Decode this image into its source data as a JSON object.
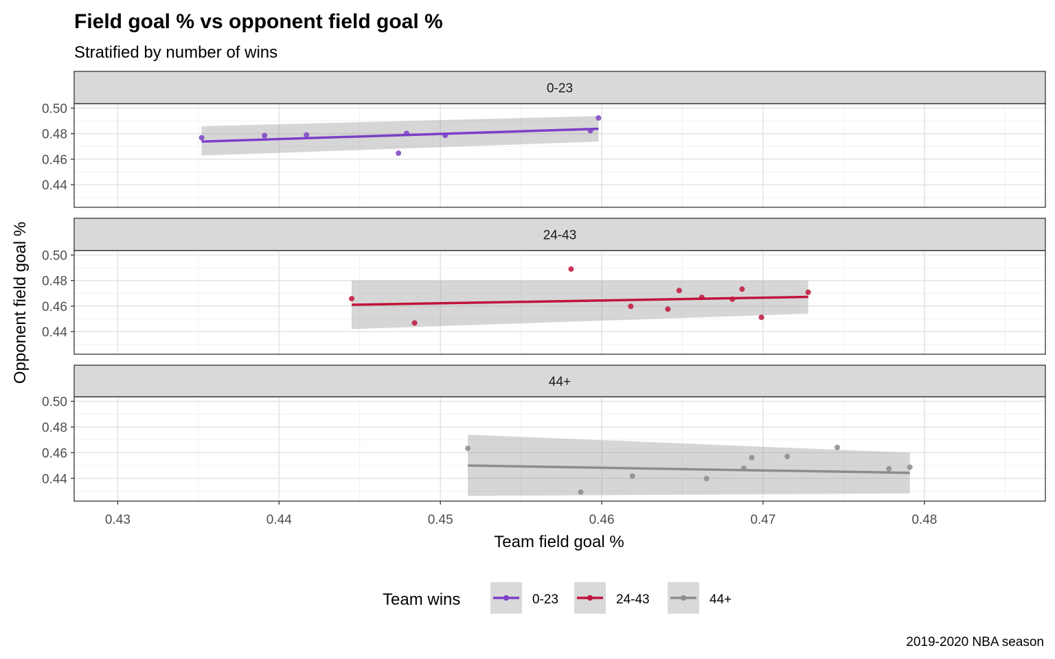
{
  "chart_data": {
    "type": "scatter",
    "title": "Field goal % vs opponent field goal %",
    "subtitle": "Stratified by number of wins",
    "xlabel": "Team field goal %",
    "ylabel": "Opponent field goal %",
    "caption": "2019-2020 NBA season",
    "xlim": [
      0.4273,
      0.4875
    ],
    "ylim": [
      0.4223,
      0.5035
    ],
    "x_ticks": [
      "0.43",
      "0.44",
      "0.45",
      "0.46",
      "0.47",
      "0.48"
    ],
    "x_tick_values": [
      0.43,
      0.44,
      0.45,
      0.46,
      0.47,
      0.48
    ],
    "y_ticks": [
      "0.44",
      "0.46",
      "0.48",
      "0.50"
    ],
    "y_tick_values": [
      0.44,
      0.46,
      0.48,
      0.5
    ],
    "grid": true,
    "legend": {
      "title": "Team wins",
      "position": "bottom",
      "items": [
        "0-23",
        "24-43",
        "44+"
      ]
    },
    "panels": [
      {
        "label": "0-23",
        "color": "#7B3FC6",
        "points": [
          {
            "x": 0.4352,
            "y": 0.4768
          },
          {
            "x": 0.4391,
            "y": 0.4785
          },
          {
            "x": 0.4417,
            "y": 0.479
          },
          {
            "x": 0.4474,
            "y": 0.4647
          },
          {
            "x": 0.4479,
            "y": 0.4802
          },
          {
            "x": 0.4503,
            "y": 0.4787
          },
          {
            "x": 0.4593,
            "y": 0.4823
          },
          {
            "x": 0.4598,
            "y": 0.4923
          }
        ],
        "fit": {
          "x0": 0.4352,
          "y0": 0.4738,
          "x1": 0.4598,
          "y1": 0.4838
        },
        "band": {
          "lower": [
            0.4628,
            0.4738
          ],
          "upper": [
            0.4858,
            0.4938
          ]
        }
      },
      {
        "label": "24-43",
        "color": "#C0143C",
        "points": [
          {
            "x": 0.4445,
            "y": 0.4658
          },
          {
            "x": 0.4484,
            "y": 0.4468
          },
          {
            "x": 0.4581,
            "y": 0.489
          },
          {
            "x": 0.4618,
            "y": 0.4598
          },
          {
            "x": 0.4641,
            "y": 0.4576
          },
          {
            "x": 0.4648,
            "y": 0.4722
          },
          {
            "x": 0.4662,
            "y": 0.4668
          },
          {
            "x": 0.4681,
            "y": 0.4654
          },
          {
            "x": 0.4687,
            "y": 0.4733
          },
          {
            "x": 0.4699,
            "y": 0.4512
          },
          {
            "x": 0.4728,
            "y": 0.4708
          }
        ],
        "fit": {
          "x0": 0.4445,
          "y0": 0.461,
          "x1": 0.4728,
          "y1": 0.4672
        },
        "band": {
          "lower": [
            0.442,
            0.454
          ],
          "upper": [
            0.48,
            0.48
          ]
        }
      },
      {
        "label": "44+",
        "color": "#8C8C8C",
        "points": [
          {
            "x": 0.4517,
            "y": 0.4634
          },
          {
            "x": 0.4587,
            "y": 0.4293
          },
          {
            "x": 0.4619,
            "y": 0.4418
          },
          {
            "x": 0.4665,
            "y": 0.4398
          },
          {
            "x": 0.4688,
            "y": 0.4478
          },
          {
            "x": 0.4693,
            "y": 0.4561
          },
          {
            "x": 0.4715,
            "y": 0.457
          },
          {
            "x": 0.4746,
            "y": 0.4641
          },
          {
            "x": 0.4778,
            "y": 0.4475
          },
          {
            "x": 0.4791,
            "y": 0.4487
          }
        ],
        "fit": {
          "x0": 0.4517,
          "y0": 0.45,
          "x1": 0.4791,
          "y1": 0.4443
        },
        "band": {
          "lower": [
            0.4263,
            0.4283
          ],
          "upper": [
            0.474,
            0.46
          ]
        }
      }
    ]
  }
}
